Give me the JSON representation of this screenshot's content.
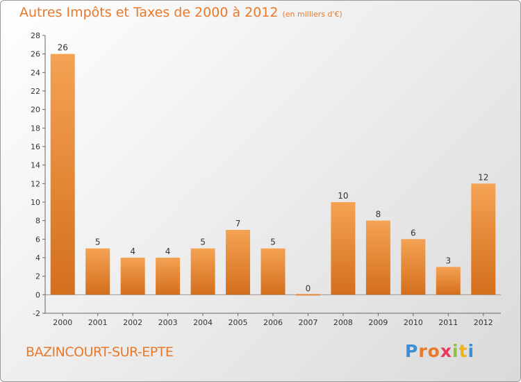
{
  "title": "Autres Impôts et Taxes de 2000 à 2012",
  "subtitle": "(en milliers d'€)",
  "commune": "BAZINCOURT-SUR-EPTE",
  "logo": {
    "letters": [
      "P",
      "r",
      "o",
      "x",
      "i",
      "t",
      "i"
    ],
    "colors": [
      "#3a8fd8",
      "#e8782a",
      "#e8782a",
      "#e83a5a",
      "#8ac43a",
      "#f0b020",
      "#3a8fd8"
    ]
  },
  "colors": {
    "bar": "#f0953e",
    "bar_dark": "#d6721c",
    "accent": "#e8782a"
  },
  "chart_data": {
    "type": "bar",
    "categories": [
      "2000",
      "2001",
      "2002",
      "2003",
      "2004",
      "2005",
      "2006",
      "2007",
      "2008",
      "2009",
      "2010",
      "2011",
      "2012"
    ],
    "values": [
      26,
      5,
      4,
      4,
      5,
      7,
      5,
      0,
      10,
      8,
      6,
      3,
      12
    ],
    "ylim": [
      -2,
      28
    ],
    "yticks": [
      -2,
      0,
      2,
      4,
      6,
      8,
      10,
      12,
      14,
      16,
      18,
      20,
      22,
      24,
      26,
      28
    ],
    "grid": false,
    "xlabel": "",
    "ylabel": ""
  }
}
